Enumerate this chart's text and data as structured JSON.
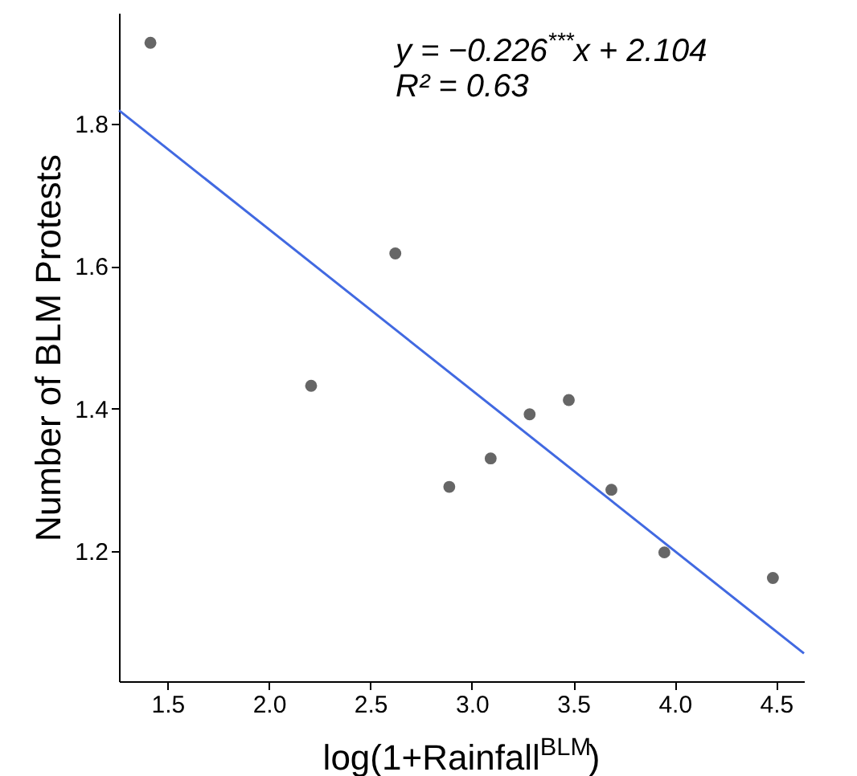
{
  "chart_data": {
    "type": "scatter",
    "xlabel": "log(1+Rainfall$^{BLM}$)",
    "ylabel": "Number of BLM Protests",
    "annotations": [
      "y = −0.226$^{***}$x + 2.104",
      "R² = 0.63"
    ],
    "series": [
      {
        "type": "scatter",
        "marker": "circle",
        "color": "#666666",
        "x": [
          1.416,
          2.208,
          2.623,
          2.889,
          3.093,
          3.285,
          3.478,
          3.688,
          3.949,
          4.484
        ],
        "values": [
          1.914,
          1.432,
          1.618,
          1.29,
          1.33,
          1.392,
          1.412,
          1.286,
          1.198,
          1.162
        ]
      },
      {
        "type": "line",
        "color": "#4169e1",
        "x": [
          1.261,
          4.637
        ],
        "values": [
          1.819,
          1.056
        ]
      }
    ],
    "xlim": [
      1.261,
      4.637
    ],
    "xticks": [
      1.5,
      {
        "value": 2,
        "label": "2.0"
      },
      2.5,
      {
        "value": 3,
        "label": "3.0"
      },
      3.5,
      {
        "value": 4,
        "label": "4.0"
      },
      4.5
    ],
    "ylim": [
      1.017,
      1.956
    ],
    "yticks": [
      1.2,
      1.4,
      1.6,
      1.8
    ],
    "grid": false
  }
}
